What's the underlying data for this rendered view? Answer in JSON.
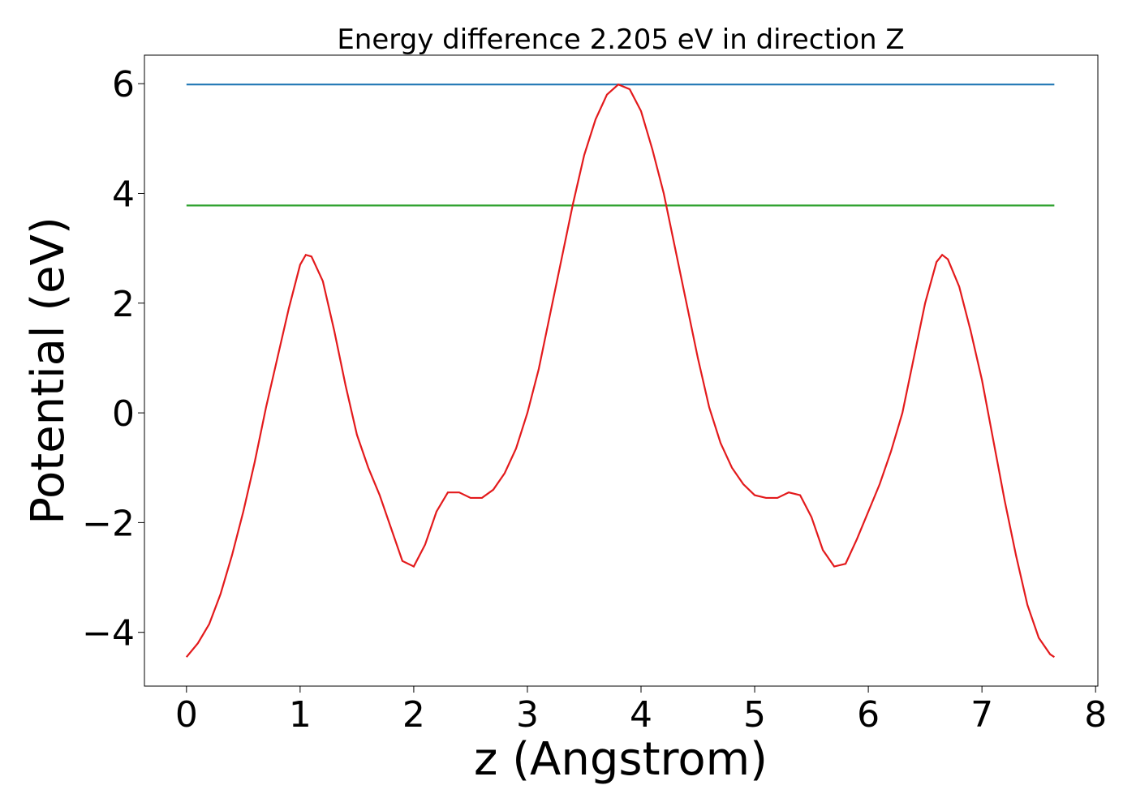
{
  "chart_data": {
    "type": "line",
    "title": "Energy difference 2.205 eV in direction Z",
    "xlabel": "z (Angstrom)",
    "ylabel": "Potential (eV)",
    "xlim": [
      -0.37,
      8.02
    ],
    "ylim": [
      -4.98,
      6.52
    ],
    "xticks": [
      0,
      1,
      2,
      3,
      4,
      5,
      6,
      7,
      8
    ],
    "yticks": [
      {
        "value": -4,
        "label": "−4"
      },
      {
        "value": -2,
        "label": "−2"
      },
      0,
      2,
      4,
      6
    ],
    "grid": false,
    "series": [
      {
        "color": "#1f77b4",
        "x": [
          0,
          7.637
        ],
        "values": [
          5.985,
          5.985
        ]
      },
      {
        "color": "#2ca02c",
        "x": [
          0,
          7.637
        ],
        "values": [
          3.78,
          3.78
        ]
      },
      {
        "color": "#e31a1c",
        "x": [
          0,
          0.1,
          0.2,
          0.3,
          0.4,
          0.5,
          0.6,
          0.7,
          0.8,
          0.9,
          1.0,
          1.05,
          1.1,
          1.2,
          1.3,
          1.4,
          1.5,
          1.6,
          1.7,
          1.8,
          1.9,
          2.0,
          2.1,
          2.2,
          2.3,
          2.4,
          2.5,
          2.6,
          2.7,
          2.8,
          2.9,
          3.0,
          3.1,
          3.2,
          3.3,
          3.4,
          3.5,
          3.6,
          3.7,
          3.8,
          3.9,
          4.0,
          4.1,
          4.2,
          4.3,
          4.4,
          4.5,
          4.6,
          4.7,
          4.8,
          4.9,
          5.0,
          5.1,
          5.2,
          5.3,
          5.4,
          5.5,
          5.6,
          5.7,
          5.8,
          5.9,
          6.0,
          6.1,
          6.2,
          6.3,
          6.4,
          6.5,
          6.6,
          6.65,
          6.7,
          6.8,
          6.9,
          7.0,
          7.1,
          7.2,
          7.3,
          7.4,
          7.5,
          7.6,
          7.637
        ],
        "values": [
          -4.45,
          -4.2,
          -3.85,
          -3.3,
          -2.6,
          -1.8,
          -0.9,
          0.1,
          1.0,
          1.9,
          2.7,
          2.88,
          2.85,
          2.4,
          1.5,
          0.5,
          -0.4,
          -1.0,
          -1.5,
          -2.1,
          -2.7,
          -2.8,
          -2.4,
          -1.8,
          -1.45,
          -1.45,
          -1.55,
          -1.55,
          -1.4,
          -1.1,
          -0.65,
          0.0,
          0.8,
          1.8,
          2.8,
          3.8,
          4.7,
          5.35,
          5.8,
          5.985,
          5.9,
          5.5,
          4.8,
          4.0,
          3.0,
          2.0,
          1.0,
          0.1,
          -0.55,
          -1.0,
          -1.3,
          -1.5,
          -1.55,
          -1.55,
          -1.45,
          -1.5,
          -1.9,
          -2.5,
          -2.8,
          -2.75,
          -2.3,
          -1.8,
          -1.3,
          -0.7,
          0.0,
          1.0,
          2.0,
          2.75,
          2.88,
          2.8,
          2.3,
          1.5,
          0.6,
          -0.5,
          -1.6,
          -2.6,
          -3.5,
          -4.1,
          -4.4,
          -4.45
        ]
      }
    ]
  }
}
